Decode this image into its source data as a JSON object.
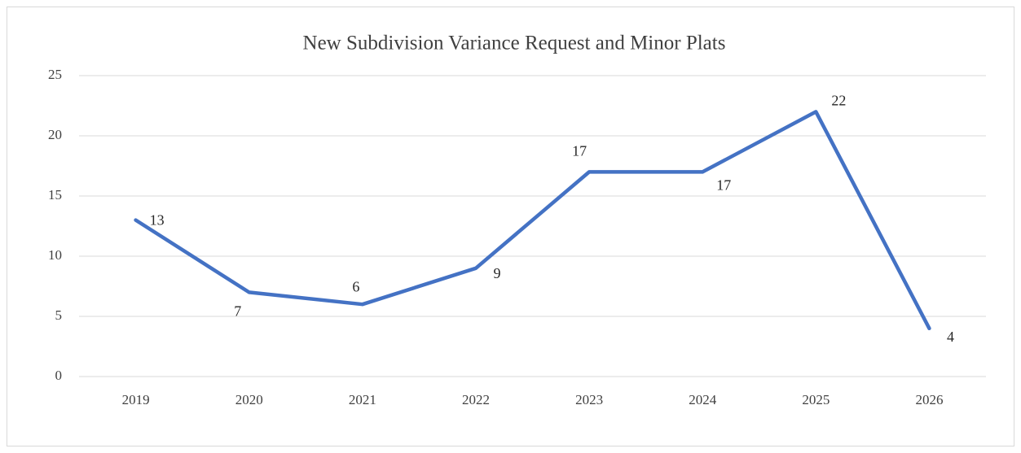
{
  "chart_data": {
    "type": "line",
    "title": "New Subdivision Variance Request and Minor Plats",
    "categories": [
      "2019",
      "2020",
      "2021",
      "2022",
      "2023",
      "2024",
      "2025",
      "2026"
    ],
    "values": [
      13,
      7,
      6,
      9,
      17,
      17,
      22,
      4
    ],
    "color": "#4472c4",
    "ylim": [
      0,
      25
    ],
    "yticks": [
      0,
      5,
      10,
      15,
      20,
      25
    ],
    "grid": true
  }
}
